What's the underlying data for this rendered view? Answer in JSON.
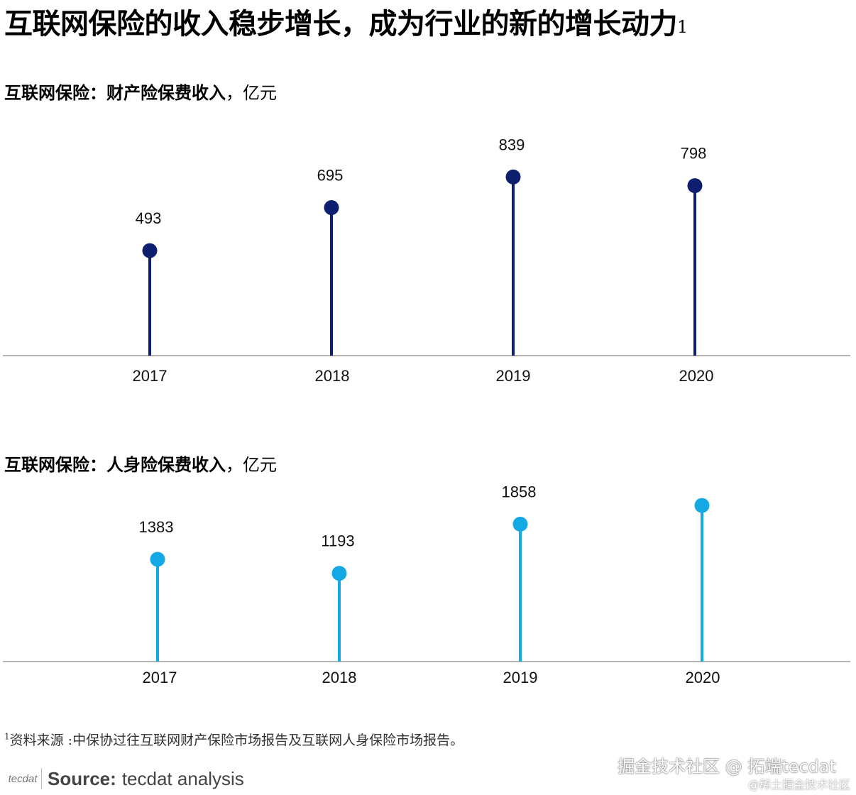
{
  "page_title": "互联网保险的收入稳步增长，成为行业的新的增长动力",
  "page_title_note": "1",
  "chart_data": [
    {
      "type": "lollipop",
      "title_bold": "互联网保险：财产险保费收入",
      "title_unit": "，亿元",
      "categories": [
        "2017",
        "2018",
        "2019",
        "2020"
      ],
      "values": [
        493,
        695,
        839,
        798
      ],
      "color": "#0d1f6e",
      "ylim": [
        0,
        1000
      ],
      "grid": false
    },
    {
      "type": "lollipop",
      "title_bold": "互联网保险：人身险保费收入",
      "title_unit": "，亿元",
      "categories": [
        "2017",
        "2018",
        "2019",
        "2020"
      ],
      "values": [
        1383,
        1193,
        1858,
        2111
      ],
      "color": "#14a8e4",
      "ylim": [
        0,
        2400
      ],
      "grid": false
    }
  ],
  "footnote": {
    "marker": "1",
    "text": "资料来源 :中保协过往互联网财产保险市场报告及互联网人身保险市场报告。"
  },
  "source": {
    "logo_text": "tecdat",
    "label": "Source:",
    "text": "tecdat analysis"
  },
  "watermark": {
    "line1": "掘金技术社区 @ 拓端tecdat",
    "line2": "@稀土掘金技术社区"
  }
}
